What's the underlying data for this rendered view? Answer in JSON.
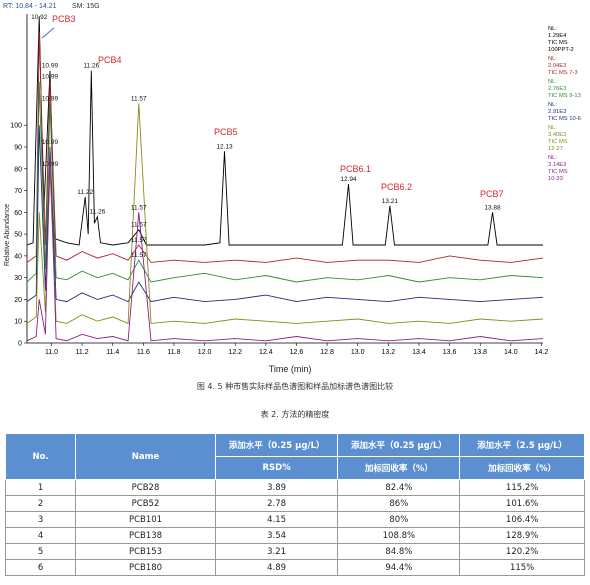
{
  "figure": {
    "header": "RT: 10.84 - 14.21",
    "smoothing": "SM: 15G",
    "caption": "图 4. 5 种市售实际样品色谱图和样品加标谱色谱图比较",
    "chart_data": {
      "type": "line",
      "x_label": "Time (min)",
      "y_label": "Relative Abundance",
      "xlim": [
        10.84,
        14.21
      ],
      "ylim": [
        0,
        146
      ],
      "xticks": [
        {
          "value": 11,
          "label": "11.0"
        },
        11.2,
        11.4,
        11.6,
        11.8,
        {
          "value": 12,
          "label": "12.0"
        },
        12.2,
        12.4,
        12.6,
        12.8,
        {
          "value": 13,
          "label": "13.0"
        },
        13.2,
        13.4,
        13.6,
        13.8,
        {
          "value": 14,
          "label": "14.0"
        },
        14.2
      ],
      "yticks": [
        0,
        10,
        20,
        30,
        40,
        50,
        60,
        70,
        80,
        90,
        100
      ],
      "annotations": [
        "PCB3",
        "PCB4",
        "PCB5",
        "PCB6.1",
        "PCB6.2",
        "PCB7"
      ],
      "series": [
        {
          "label_lines": [
            "NL:",
            "1.29E4",
            "TIC MS",
            "100PPT-2"
          ],
          "color": "#000000",
          "x": [
            10.84,
            10.88,
            10.92,
            10.95,
            10.99,
            11.02,
            11.1,
            11.18,
            11.22,
            11.24,
            11.26,
            11.28,
            11.3,
            11.32,
            11.4,
            11.5,
            11.57,
            11.62,
            12.0,
            12.1,
            12.13,
            12.16,
            12.9,
            12.94,
            12.97,
            13.18,
            13.21,
            13.24,
            13.85,
            13.88,
            13.91,
            14.21
          ],
          "values": [
            45,
            46,
            150,
            60,
            125,
            48,
            46,
            45,
            67,
            50,
            125,
            55,
            58,
            46,
            45,
            46,
            52,
            45,
            45,
            46,
            88,
            45,
            45,
            73,
            45,
            45,
            63,
            45,
            45,
            60,
            45,
            45
          ],
          "peak_labels": [
            10.92,
            10.99,
            11.22,
            11.26,
            11.26,
            11.57,
            12.13,
            12.94,
            13.21,
            13.88
          ]
        },
        {
          "label_lines": [
            "NL:",
            "2.04E3",
            "TIC MS 7-3"
          ],
          "color": "#a8282c",
          "x": [
            10.84,
            10.9,
            10.92,
            10.96,
            10.99,
            11.03,
            11.1,
            11.2,
            11.3,
            11.4,
            11.5,
            11.57,
            11.65,
            11.8,
            12.0,
            12.2,
            12.4,
            12.6,
            12.8,
            13.0,
            13.2,
            13.4,
            13.6,
            13.8,
            14.0,
            14.21
          ],
          "values": [
            37,
            40,
            143,
            45,
            120,
            40,
            38,
            42,
            39,
            41,
            38,
            45,
            37,
            38,
            37,
            38,
            37,
            39,
            37,
            38,
            38,
            37,
            40,
            38,
            37,
            39
          ],
          "peak_labels": [
            10.99,
            11.57
          ]
        },
        {
          "label_lines": [
            "NL:",
            "2.76E3",
            "TIC MS 9-13"
          ],
          "color": "#2e8b3a",
          "x": [
            10.84,
            10.9,
            10.92,
            10.96,
            10.99,
            11.03,
            11.1,
            11.2,
            11.3,
            11.4,
            11.5,
            11.57,
            11.65,
            11.8,
            12.0,
            12.2,
            12.4,
            12.6,
            12.8,
            13.0,
            13.2,
            13.4,
            13.6,
            13.8,
            14.0,
            14.21
          ],
          "values": [
            28,
            32,
            120,
            34,
            110,
            30,
            29,
            33,
            30,
            32,
            29,
            38,
            28,
            30,
            32,
            29,
            31,
            28,
            30,
            29,
            31,
            28,
            30,
            29,
            31,
            30
          ],
          "peak_labels": [
            10.99,
            11.57
          ]
        },
        {
          "label_lines": [
            "NL:",
            "2.91E3",
            "TIC MS 10-6"
          ],
          "color": "#1f2f7a",
          "x": [
            10.84,
            10.9,
            10.92,
            10.96,
            10.99,
            11.03,
            11.1,
            11.2,
            11.3,
            11.4,
            11.5,
            11.57,
            11.65,
            11.8,
            12.0,
            12.2,
            12.4,
            12.6,
            12.8,
            13.0,
            13.2,
            13.4,
            13.6,
            13.8,
            14.0,
            14.21
          ],
          "values": [
            19,
            22,
            100,
            24,
            90,
            20,
            19,
            23,
            20,
            22,
            19,
            28,
            19,
            21,
            19,
            20,
            22,
            19,
            21,
            20,
            19,
            21,
            20,
            19,
            20,
            21
          ],
          "peak_labels": [
            10.99
          ]
        },
        {
          "label_lines": [
            "NL:",
            "3.40E3",
            "TIC MS",
            "12-27"
          ],
          "color": "#8b8b1a",
          "x": [
            10.84,
            10.9,
            10.92,
            10.96,
            10.99,
            11.03,
            11.1,
            11.2,
            11.3,
            11.4,
            11.5,
            11.57,
            11.65,
            11.8,
            12.0,
            12.2,
            12.4,
            12.6,
            12.8,
            13.0,
            13.2,
            13.4,
            13.6,
            13.8,
            14.0,
            14.21
          ],
          "values": [
            9,
            12,
            60,
            14,
            80,
            10,
            9,
            13,
            10,
            12,
            9,
            110,
            9,
            10,
            9,
            11,
            10,
            9,
            10,
            11,
            9,
            10,
            9,
            11,
            10,
            11
          ],
          "peak_labels": [
            10.99,
            11.57
          ]
        },
        {
          "label_lines": [
            "NL:",
            "3.14E3",
            "TIC MS",
            "10-33"
          ],
          "color": "#8b1e8b",
          "x": [
            10.84,
            10.9,
            10.92,
            10.96,
            10.99,
            11.03,
            11.1,
            11.2,
            11.3,
            11.4,
            11.5,
            11.57,
            11.65,
            11.8,
            12.0,
            12.2,
            12.4,
            12.6,
            12.8,
            13.0,
            13.2,
            13.4,
            13.6,
            13.8,
            14.0,
            14.21
          ],
          "values": [
            1,
            3,
            20,
            4,
            90,
            2,
            1,
            4,
            2,
            3,
            1,
            60,
            1,
            2,
            1,
            2,
            1,
            3,
            1,
            2,
            1,
            2,
            1,
            3,
            1,
            2
          ],
          "peak_labels": [
            11.57
          ]
        }
      ]
    }
  },
  "table": {
    "title": "表 2. 方法的精密度",
    "header": [
      [
        "No.",
        "Name",
        "添加水平（0.25 μg/L）",
        "添加水平（0.25 μg/L）",
        "添加水平（2.5 μg/L）"
      ],
      [
        "RSD%",
        "加标回收率（%）",
        "加标回收率（%）"
      ]
    ],
    "rows": [
      [
        "1",
        "PCB28",
        "3.89",
        "82.4%",
        "115.2%"
      ],
      [
        "2",
        "PCB52",
        "2.78",
        "86%",
        "101.6%"
      ],
      [
        "3",
        "PCB101",
        "4.15",
        "80%",
        "106.4%"
      ],
      [
        "4",
        "PCB138",
        "3.54",
        "108.8%",
        "128.9%"
      ],
      [
        "5",
        "PCB153",
        "3.21",
        "84.8%",
        "120.2%"
      ],
      [
        "6",
        "PCB180",
        "4.89",
        "94.4%",
        "115%"
      ]
    ]
  }
}
